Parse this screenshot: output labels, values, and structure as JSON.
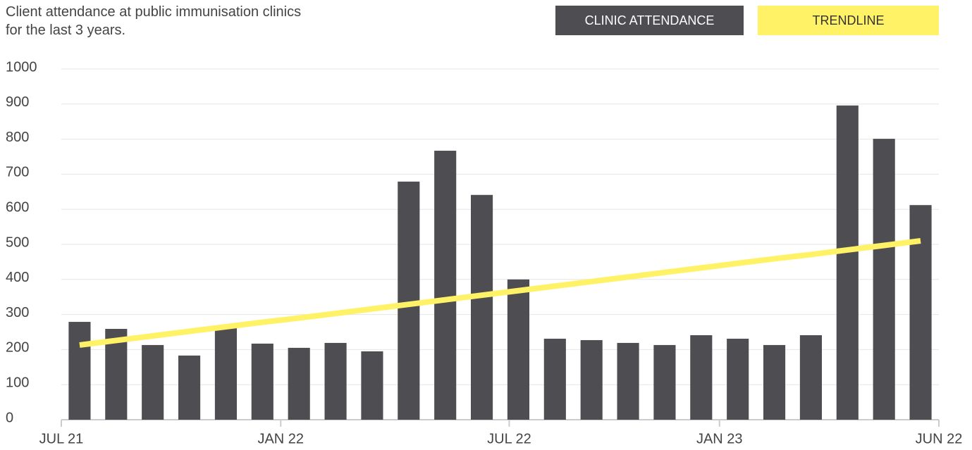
{
  "chart_data": {
    "type": "bar",
    "title": "Client attendance at public immunisation clinics for the last 3 years.",
    "categories": [
      null,
      null,
      null,
      null,
      null,
      null,
      null,
      null,
      null,
      null,
      null,
      null,
      null,
      null,
      null,
      null,
      null,
      null,
      null,
      null,
      null,
      null,
      null,
      null
    ],
    "series": [
      {
        "name": "CLINIC ATTENDANCE",
        "color": "#4d4d52",
        "values": [
          279,
          259,
          213,
          183,
          261,
          217,
          205,
          219,
          195,
          679,
          767,
          641,
          400,
          231,
          227,
          219,
          213,
          241,
          231,
          213,
          241,
          896,
          801,
          612
        ]
      },
      {
        "name": "TRENDLINE",
        "color": "#fff266",
        "type": "line",
        "values": [
          213,
          226,
          239,
          252,
          265,
          278,
          290,
          303,
          316,
          329,
          342,
          355,
          368,
          381,
          394,
          407,
          420,
          433,
          446,
          459,
          471,
          484,
          497,
          510
        ]
      }
    ],
    "xticks": [
      {
        "value": -0.5,
        "label": "JUL 21"
      },
      {
        "value": 5.5,
        "label": "JAN 22"
      },
      {
        "value": 11.75,
        "label": "JUL 22"
      },
      {
        "value": 17.5,
        "label": "JAN 23"
      },
      {
        "value": 23.5,
        "label": "JUN 22"
      }
    ],
    "ylim": [
      0,
      1000
    ],
    "yticks": [
      0,
      100,
      200,
      300,
      400,
      500,
      600,
      700,
      800,
      900,
      1000
    ],
    "grid": true
  }
}
